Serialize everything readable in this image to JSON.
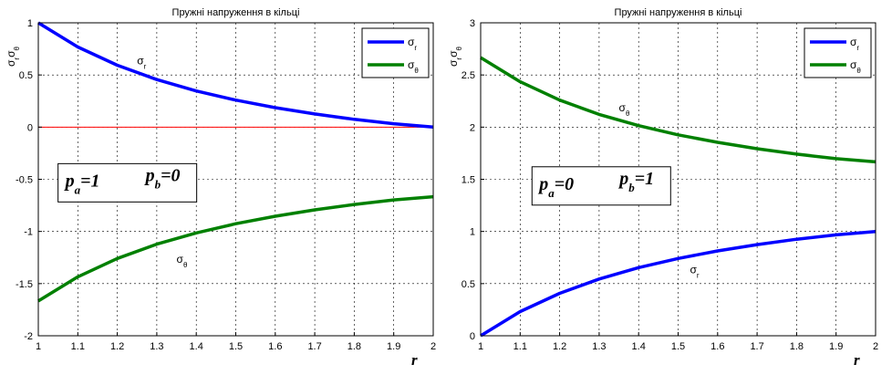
{
  "chart_data": [
    {
      "type": "line",
      "title": "Пружні напруження в кільці",
      "xlabel": "r",
      "ylabel": [
        "σ",
        "r",
        "σ",
        "θ"
      ],
      "xlim": [
        1,
        2
      ],
      "ylim": [
        -2,
        1
      ],
      "xticks": [
        "1",
        "1.1",
        "1.2",
        "1.3",
        "1.4",
        "1.5",
        "1.6",
        "1.7",
        "1.8",
        "1.9",
        "2"
      ],
      "yticks": [
        "-2",
        "-1.5",
        "-1",
        "-0.5",
        "0",
        "0.5",
        "1"
      ],
      "grid": true,
      "legend_position": "top-right",
      "zero_line": {
        "y": 0,
        "color": "#ff0000"
      },
      "series": [
        {
          "name": [
            "σ",
            "r"
          ],
          "color": "#0000ff",
          "x": [
            1,
            1.1,
            1.2,
            1.3,
            1.4,
            1.5,
            1.6,
            1.7,
            1.8,
            1.9,
            2
          ],
          "y": [
            1,
            0.768,
            0.593,
            0.456,
            0.347,
            0.259,
            0.187,
            0.126,
            0.075,
            0.033,
            0
          ]
        },
        {
          "name": [
            "σ",
            "θ"
          ],
          "color": "#008000",
          "x": [
            1,
            1.1,
            1.2,
            1.3,
            1.4,
            1.5,
            1.6,
            1.7,
            1.8,
            1.9,
            2
          ],
          "y": [
            -1.667,
            -1.435,
            -1.259,
            -1.122,
            -1.014,
            -0.926,
            -0.854,
            -0.793,
            -0.741,
            -0.698,
            -0.667
          ]
        }
      ],
      "annotations": [
        {
          "text": [
            "σ",
            "r"
          ],
          "x": 1.25,
          "y": 0.6
        },
        {
          "text": [
            "σ",
            "θ"
          ],
          "x": 1.35,
          "y": -1.3
        }
      ],
      "text_box": {
        "p1": [
          "p",
          "a",
          "=1"
        ],
        "p2": [
          "p",
          "b",
          "=0"
        ],
        "x": 1.05,
        "y": -0.35
      }
    },
    {
      "type": "line",
      "title": "Пружні напруження в кільці",
      "xlabel": "r",
      "ylabel": [
        "σ",
        "r",
        "σ",
        "θ"
      ],
      "xlim": [
        1,
        2
      ],
      "ylim": [
        0,
        3
      ],
      "xticks": [
        "1",
        "1.1",
        "1.2",
        "1.3",
        "1.4",
        "1.5",
        "1.6",
        "1.7",
        "1.8",
        "1.9",
        "2"
      ],
      "yticks": [
        "0",
        "0.5",
        "1",
        "1.5",
        "2",
        "2.5",
        "3"
      ],
      "grid": true,
      "legend_position": "top-right",
      "zero_line": {
        "y": 0,
        "color": "#ff0000"
      },
      "series": [
        {
          "name": [
            "σ",
            "r"
          ],
          "color": "#0000ff",
          "x": [
            1,
            1.1,
            1.2,
            1.3,
            1.4,
            1.5,
            1.6,
            1.7,
            1.8,
            1.9,
            2
          ],
          "y": [
            0,
            0.232,
            0.407,
            0.544,
            0.653,
            0.741,
            0.813,
            0.874,
            0.925,
            0.967,
            1
          ]
        },
        {
          "name": [
            "σ",
            "θ"
          ],
          "color": "#008000",
          "x": [
            1,
            1.1,
            1.2,
            1.3,
            1.4,
            1.5,
            1.6,
            1.7,
            1.8,
            1.9,
            2
          ],
          "y": [
            2.667,
            2.435,
            2.259,
            2.122,
            2.014,
            1.926,
            1.854,
            1.793,
            1.741,
            1.698,
            1.667
          ]
        }
      ],
      "annotations": [
        {
          "text": [
            "σ",
            "θ"
          ],
          "x": 1.35,
          "y": 2.15
        },
        {
          "text": [
            "σ",
            "r"
          ],
          "x": 1.53,
          "y": 0.6
        }
      ],
      "text_box": {
        "p1": [
          "p",
          "a",
          "=0"
        ],
        "p2": [
          "p",
          "b",
          "=1"
        ],
        "x": 1.13,
        "y": 1.62
      }
    }
  ]
}
